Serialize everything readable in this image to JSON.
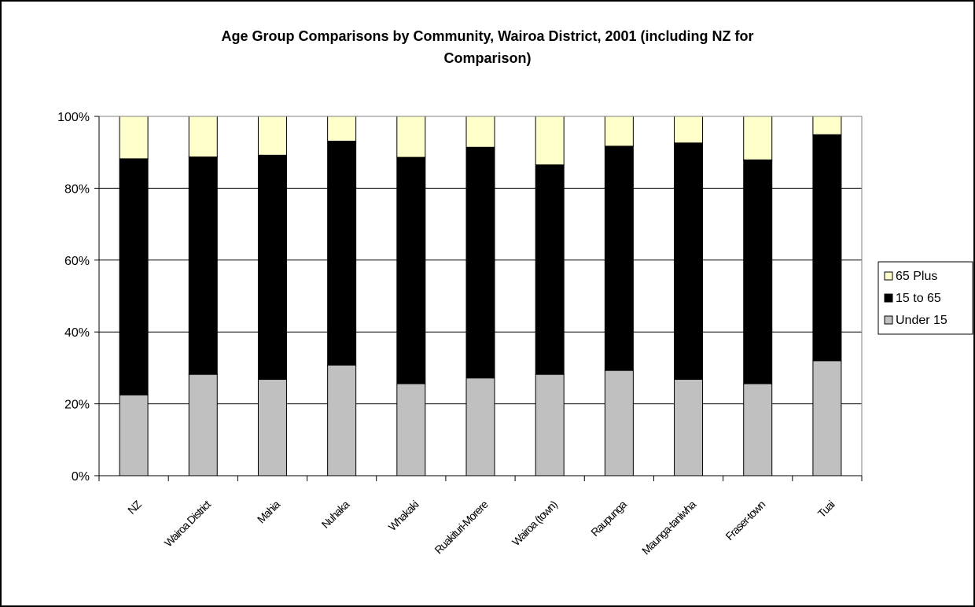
{
  "chart_data": {
    "type": "bar",
    "stacked": true,
    "title_lines": [
      "Age Group Comparisons by Community, Wairoa District, 2001 (including NZ for",
      "Comparison)"
    ],
    "categories": [
      "NZ",
      "Wairoa District",
      "Mahia",
      "Nuhaka",
      "Whakaki",
      "Ruakituri-Morere",
      "Wairoa (town)",
      "Raupunga",
      "Maunga-taniwha",
      "Fraser-town",
      "Tuai"
    ],
    "series": [
      {
        "name": "Under 15",
        "color": "#c0c0c0",
        "values": [
          22.5,
          28.2,
          26.8,
          30.8,
          25.6,
          27.2,
          28.2,
          29.3,
          26.8,
          25.6,
          32.0
        ]
      },
      {
        "name": "15 to 65",
        "color": "#000000",
        "values": [
          65.7,
          60.5,
          62.4,
          62.3,
          63.0,
          64.2,
          58.3,
          62.4,
          65.8,
          62.3,
          62.9
        ]
      },
      {
        "name": "65 Plus",
        "color": "#ffffcc",
        "values": [
          11.8,
          11.3,
          10.8,
          6.9,
          11.4,
          8.6,
          13.5,
          8.3,
          7.4,
          12.1,
          5.1
        ]
      }
    ],
    "legend_order": [
      "65 Plus",
      "15 to 65",
      "Under 15"
    ],
    "y_tick_labels": [
      "0%",
      "20%",
      "40%",
      "60%",
      "80%",
      "100%"
    ],
    "ylim": [
      0,
      100
    ],
    "grid": true,
    "legend_position": "right"
  }
}
